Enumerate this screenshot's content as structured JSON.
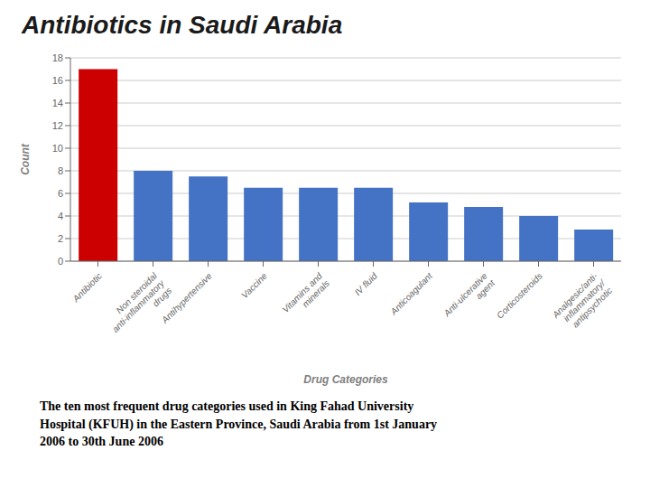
{
  "chart_data": {
    "type": "bar",
    "title": "Antibiotics in Saudi Arabia",
    "subtitle": "The ten most frequent drug categories used in King Fahad University\nHospital (KFUH) in the Eastern Province, Saudi Arabia from 1st January\n2006 to 30th June 2006",
    "categories": [
      "Antibiotic",
      "Non steroidal\nanti-inflammatory\ndrugs",
      "Antihypertensive",
      "Vaccine",
      "Vitamins and\nminerals",
      "IV fluid",
      "Anticoagulant",
      "Anti-ulcerative\nagent",
      "Corticosteroids",
      "Analgesic/anti-\ninflammatory/\nantipsychotic"
    ],
    "values": [
      17,
      8,
      7.5,
      6.5,
      6.5,
      6.5,
      5.2,
      4.8,
      4,
      2.8
    ],
    "colors": [
      "#cc0000",
      "#4472c4",
      "#4472c4",
      "#4472c4",
      "#4472c4",
      "#4472c4",
      "#4472c4",
      "#4472c4",
      "#4472c4",
      "#4472c4"
    ],
    "xlabel": "Drug Categories",
    "ylabel": "Count",
    "ylim": [
      0,
      18
    ],
    "yticks": [
      0,
      2,
      4,
      6,
      8,
      10,
      12,
      14,
      16,
      18
    ],
    "grid": true
  }
}
